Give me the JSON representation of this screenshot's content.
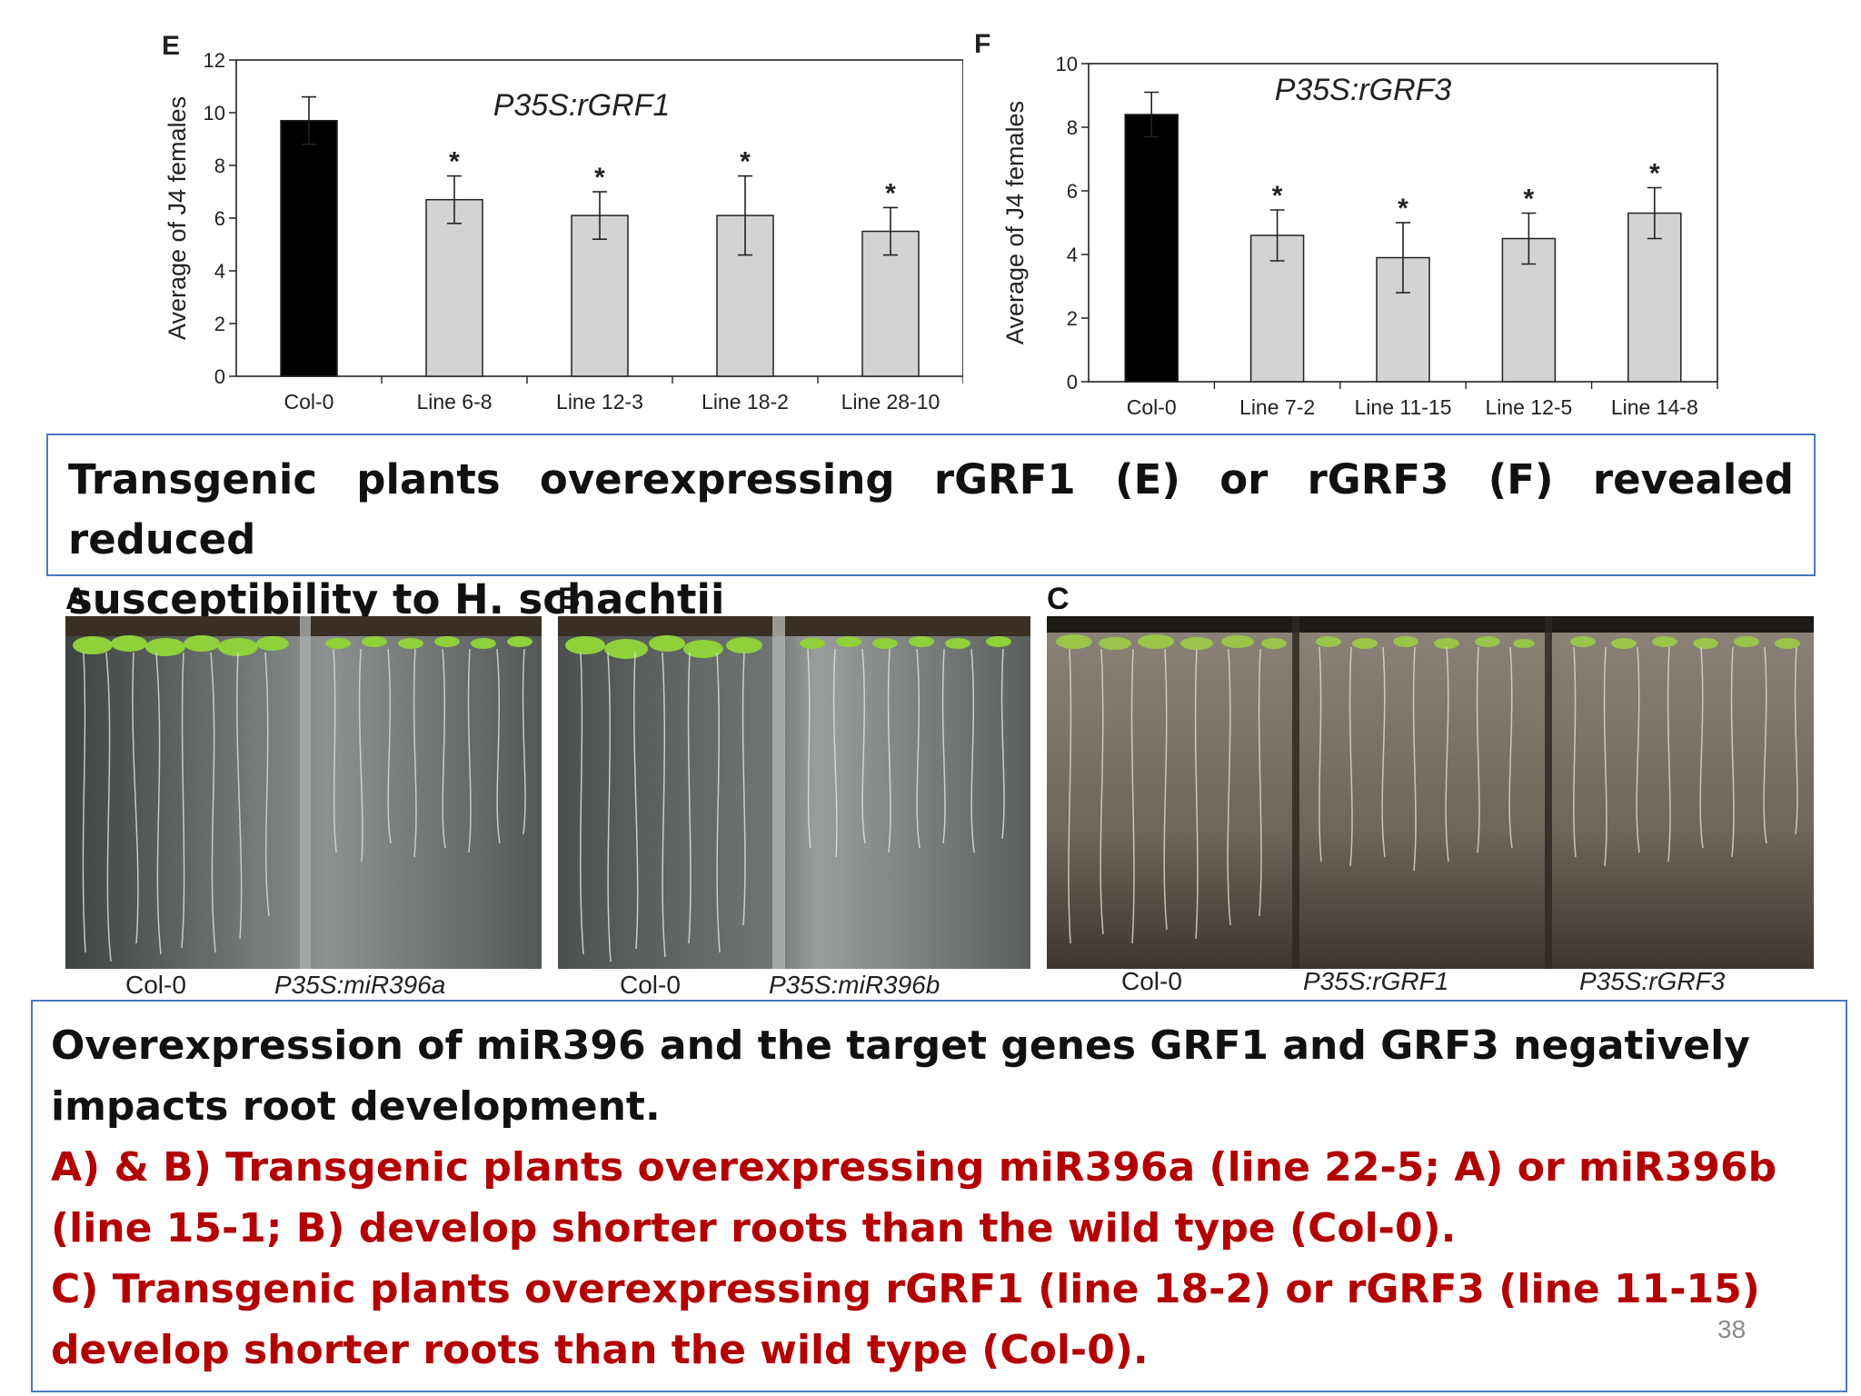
{
  "chart_data": [
    {
      "panel": "E",
      "type": "bar",
      "title": "P35S:rGRF1",
      "ylabel": "Average of J4 females",
      "xlabel": "",
      "ylim": [
        0,
        12
      ],
      "yticks": [
        "0",
        "2",
        "4",
        "6",
        "8",
        "10",
        "12"
      ],
      "categories": [
        "Col-0",
        "Line 6-8",
        "Line 12-3",
        "Line 18-2",
        "Line 28-10"
      ],
      "values": [
        9.7,
        6.7,
        6.1,
        6.1,
        5.5
      ],
      "errors": [
        0.9,
        0.9,
        0.9,
        1.5,
        0.9
      ],
      "significance": [
        "",
        "*",
        "*",
        "*",
        "*"
      ],
      "bar_colors": [
        "#000000",
        "#d3d3d3",
        "#d3d3d3",
        "#d3d3d3",
        "#d3d3d3"
      ],
      "grid": false
    },
    {
      "panel": "F",
      "type": "bar",
      "title": "P35S:rGRF3",
      "ylabel": "Average of J4 females",
      "xlabel": "",
      "ylim": [
        0,
        10
      ],
      "yticks": [
        "0",
        "2",
        "4",
        "6",
        "8",
        "10"
      ],
      "categories": [
        "Col-0",
        "Line 7-2",
        "Line 11-15",
        "Line 12-5",
        "Line 14-8"
      ],
      "values": [
        8.4,
        4.6,
        3.9,
        4.5,
        5.3
      ],
      "errors": [
        0.7,
        0.8,
        1.1,
        0.8,
        0.8
      ],
      "significance": [
        "",
        "*",
        "*",
        "*",
        "*"
      ],
      "bar_colors": [
        "#000000",
        "#d3d3d3",
        "#d3d3d3",
        "#d3d3d3",
        "#d3d3d3"
      ],
      "grid": false
    }
  ],
  "caption_top": {
    "line1": "Transgenic plants overexpressing rGRF1 (E) or rGRF3 (F) revealed reduced",
    "line2": "susceptibility to H. schachtii"
  },
  "photos": {
    "A": {
      "letter": "A",
      "labels": [
        "Col-0",
        "P35S:miR396a"
      ]
    },
    "B": {
      "letter": "B",
      "labels": [
        "Col-0",
        "P35S:miR396b"
      ]
    },
    "C": {
      "letter": "C",
      "labels": [
        "Col-0",
        "P35S:rGRF1",
        "P35S:rGRF3"
      ]
    }
  },
  "caption_bottom": {
    "black": "Overexpression of miR396 and the target genes GRF1 and GRF3 negatively impacts root development.",
    "red1": "A) & B) Transgenic plants overexpressing miR396a (line 22-5; A) or miR396b (line 15-1; B) develop shorter roots than the wild type (Col-0).",
    "red2": "C) Transgenic plants overexpressing rGRF1 (line 18-2) or rGRF3 (line 11-15) develop shorter roots than the wild type (Col-0)."
  },
  "page_number": "38",
  "colors": {
    "caption_border": "#4a77c0",
    "red_text": "#b30000",
    "bar_control": "#000000",
    "bar_transgenic": "#d3d3d3"
  }
}
